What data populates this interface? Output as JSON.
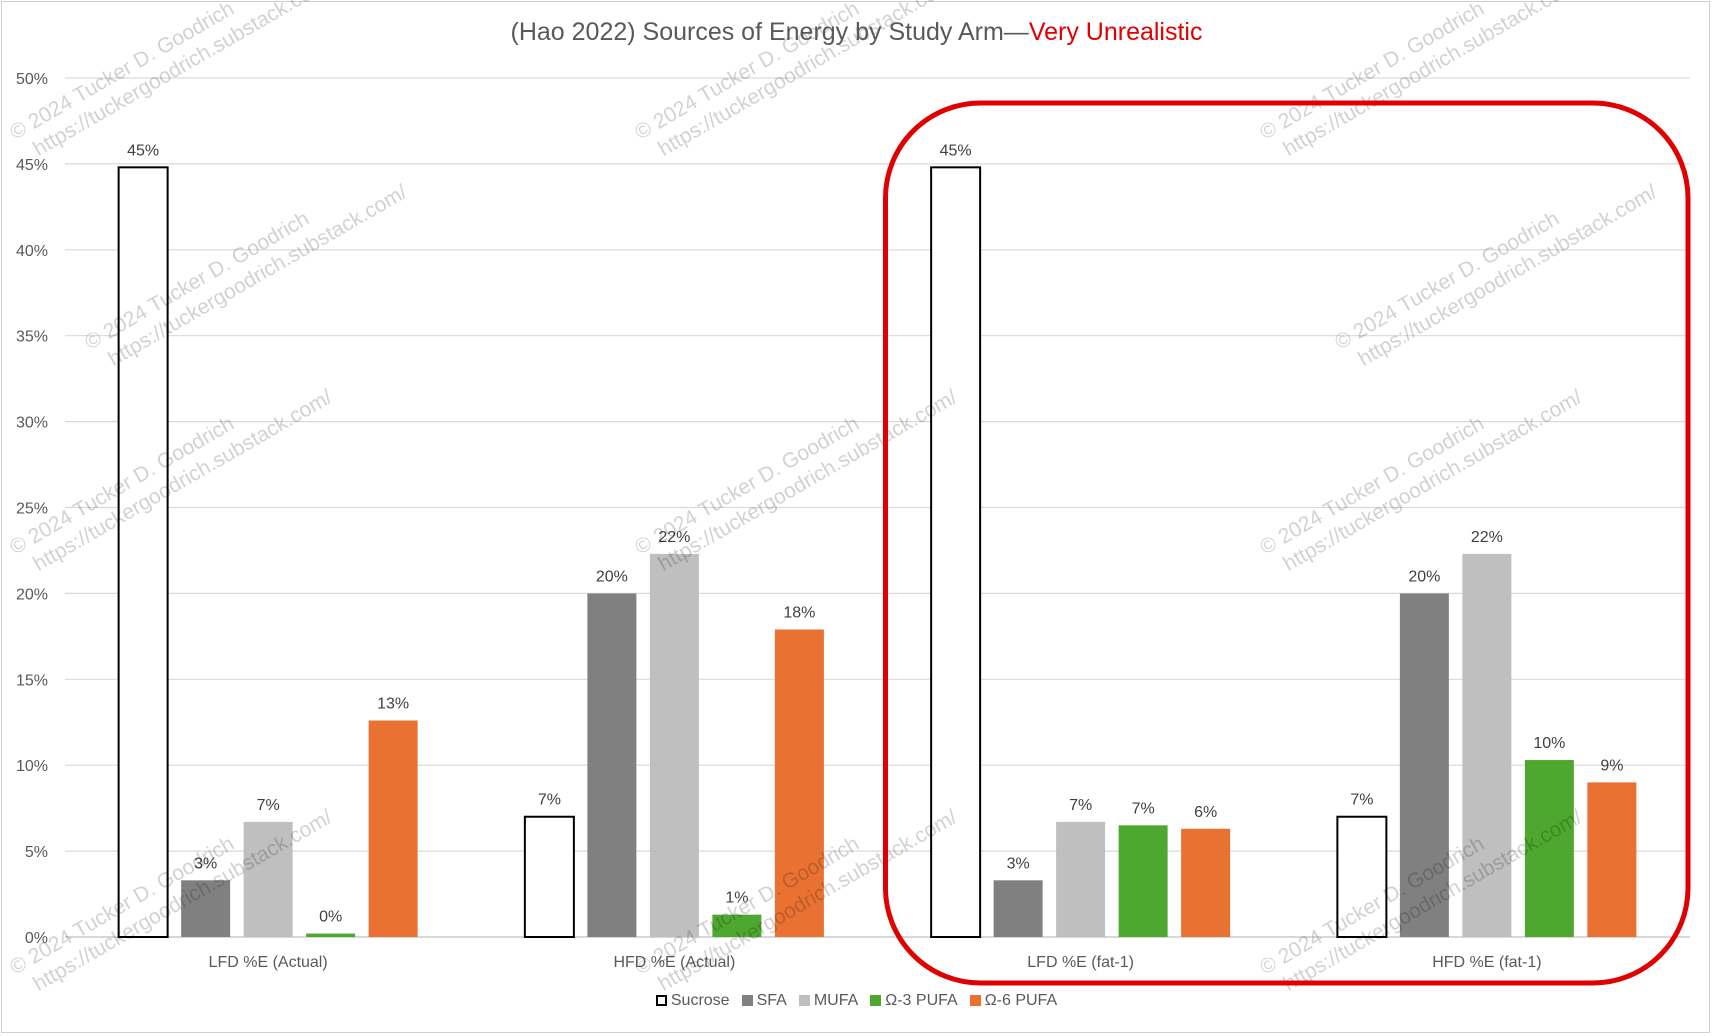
{
  "chart_data": {
    "type": "bar",
    "title": "(Hao 2022) Sources of Energy by Study Arm—",
    "title_highlight": "Very Unrealistic",
    "title_highlight_color": "#e00000",
    "xlabel": "",
    "ylabel": "",
    "ylim": [
      0,
      50
    ],
    "y_ticks": [
      "0%",
      "5%",
      "10%",
      "15%",
      "20%",
      "25%",
      "30%",
      "35%",
      "40%",
      "45%",
      "50%"
    ],
    "grid": true,
    "legend_position": "bottom",
    "categories": [
      "LFD %E (Actual)",
      "HFD %E (Actual)",
      "LFD %E (fat-1)",
      "HFD %E (fat-1)"
    ],
    "series": [
      {
        "name": "Sucrose",
        "color": "#ffffff",
        "outline": "#000000",
        "values": [
          44.8,
          7.0,
          44.8,
          7.0
        ],
        "labels": [
          "45%",
          "7%",
          "45%",
          "7%"
        ]
      },
      {
        "name": "SFA",
        "color": "#808080",
        "values": [
          3.3,
          20.0,
          3.3,
          20.0
        ],
        "labels": [
          "3%",
          "20%",
          "3%",
          "20%"
        ]
      },
      {
        "name": "MUFA",
        "color": "#bfbfbf",
        "values": [
          6.7,
          22.3,
          6.7,
          22.3
        ],
        "labels": [
          "7%",
          "22%",
          "7%",
          "22%"
        ]
      },
      {
        "name": "Ω-3 PUFA",
        "color": "#4ea72e",
        "values": [
          0.2,
          1.3,
          6.5,
          10.3
        ],
        "labels": [
          "0%",
          "1%",
          "7%",
          "10%"
        ]
      },
      {
        "name": "Ω-6 PUFA",
        "color": "#e97132",
        "values": [
          12.6,
          17.9,
          6.3,
          9.0
        ],
        "labels": [
          "13%",
          "18%",
          "6%",
          "9%"
        ]
      }
    ],
    "highlight_box": {
      "color": "#e00000",
      "categories": [
        "LFD %E (fat-1)",
        "HFD %E (fat-1)"
      ]
    }
  },
  "watermark": {
    "line1": "© 2024 Tucker D. Goodrich",
    "line2": "https://tuckergoodrich.substack.com/"
  }
}
